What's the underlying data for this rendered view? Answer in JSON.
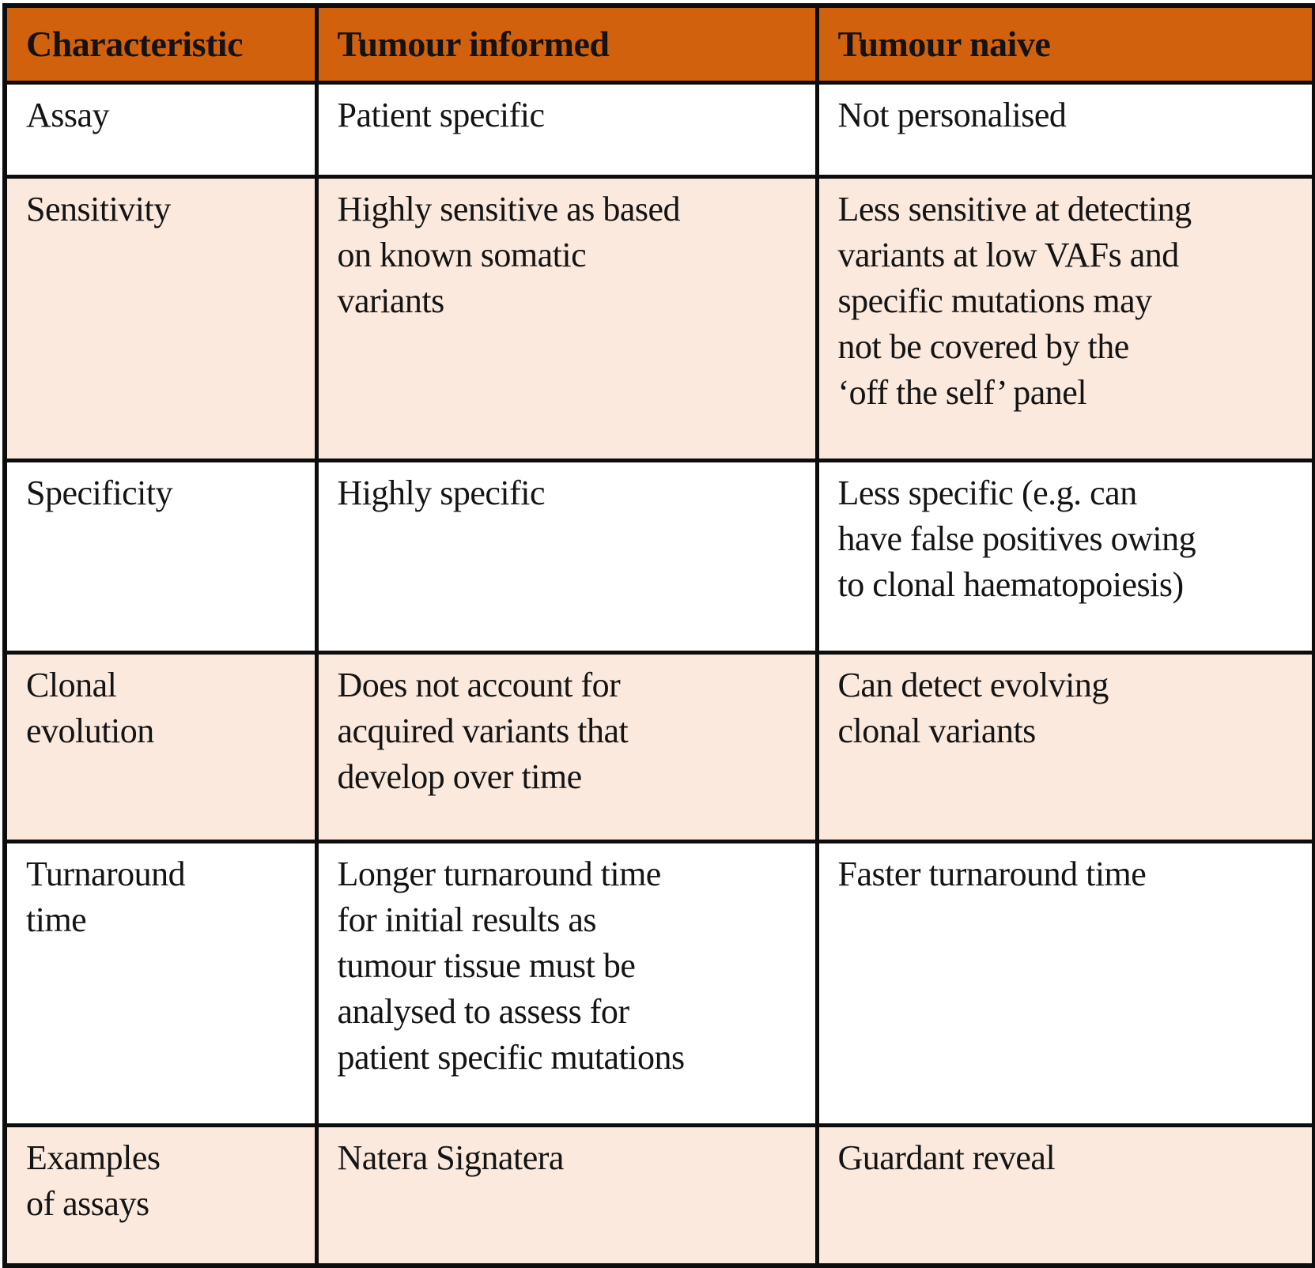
{
  "colors": {
    "header_bg": "#d2610e",
    "header_text": "#131313",
    "row_bg": "#ffffff",
    "row_alt_bg": "#fbe9dd",
    "border": "#0d0d0d",
    "body_text": "#141414"
  },
  "table": {
    "columns": [
      "Characteristic",
      "Tumour informed",
      "Tumour naive"
    ],
    "rows": [
      {
        "shaded": false,
        "cells": [
          "Assay",
          "Patient specific",
          "Not personalised"
        ]
      },
      {
        "shaded": true,
        "cells": [
          "Sensitivity",
          "Highly sensitive as based\non known somatic\nvariants",
          "Less sensitive at detecting\nvariants at low VAFs and\nspecific mutations may\nnot be covered by the\n‘off the self’ panel"
        ]
      },
      {
        "shaded": false,
        "cells": [
          "Specificity",
          "Highly specific",
          "Less specific (e.g. can\nhave false positives owing\nto clonal haematopoiesis)"
        ]
      },
      {
        "shaded": true,
        "cells": [
          "Clonal\nevolution",
          "Does not account for\nacquired variants that\ndevelop over time",
          "Can detect evolving\nclonal variants"
        ]
      },
      {
        "shaded": false,
        "cells": [
          "Turnaround\ntime",
          "Longer turnaround time\nfor initial results as\ntumour tissue must be\nanalysed to assess for\npatient specific mutations",
          "Faster turnaround time"
        ]
      },
      {
        "shaded": true,
        "cells": [
          "Examples\nof assays",
          "Natera Signatera",
          "Guardant reveal"
        ]
      }
    ]
  }
}
